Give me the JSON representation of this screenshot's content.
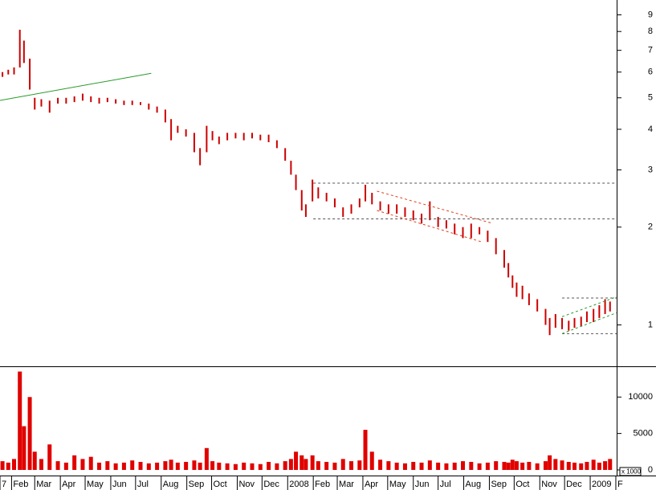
{
  "chart_data": [
    {
      "type": "range",
      "log": true,
      "color": "#cc0000",
      "xlim": [
        0,
        746
      ],
      "ylim": [
        0.75,
        10
      ],
      "yticks": [
        1,
        2,
        3,
        4,
        5,
        6,
        7,
        8,
        9
      ],
      "x": [
        3,
        10,
        17,
        24,
        29,
        36,
        42,
        50,
        60,
        70,
        80,
        90,
        100,
        110,
        120,
        130,
        140,
        150,
        160,
        170,
        180,
        190,
        200,
        207,
        215,
        225,
        235,
        242,
        250,
        257,
        265,
        275,
        285,
        295,
        305,
        315,
        325,
        335,
        345,
        352,
        358,
        365,
        370,
        378,
        385,
        395,
        405,
        415,
        425,
        435,
        442,
        450,
        460,
        470,
        480,
        490,
        500,
        510,
        520,
        530,
        540,
        550,
        560,
        570,
        580,
        590,
        600,
        610,
        615,
        620,
        625,
        632,
        640,
        650,
        660,
        665,
        672,
        680,
        688,
        695,
        703,
        710,
        718,
        725,
        732,
        738
      ],
      "low": [
        5.8,
        5.9,
        5.9,
        6.2,
        6.4,
        5.3,
        4.6,
        4.7,
        4.5,
        4.8,
        4.8,
        4.85,
        4.9,
        4.85,
        4.8,
        4.85,
        4.8,
        4.75,
        4.75,
        4.75,
        4.6,
        4.5,
        4.2,
        3.7,
        3.9,
        3.8,
        3.4,
        3.1,
        3.4,
        3.7,
        3.6,
        3.7,
        3.75,
        3.7,
        3.75,
        3.7,
        3.65,
        3.5,
        3.2,
        2.9,
        2.6,
        2.25,
        2.15,
        2.4,
        2.45,
        2.4,
        2.3,
        2.15,
        2.2,
        2.3,
        2.4,
        2.35,
        2.25,
        2.2,
        2.2,
        2.15,
        2.1,
        2.05,
        2.1,
        2.0,
        1.98,
        1.9,
        1.85,
        1.85,
        1.9,
        1.8,
        1.65,
        1.5,
        1.4,
        1.3,
        1.22,
        1.2,
        1.15,
        1.1,
        1.0,
        0.93,
        0.98,
        0.97,
        0.96,
        0.98,
        0.99,
        1.02,
        1.02,
        1.05,
        1.08,
        1.1
      ],
      "high": [
        6.0,
        6.1,
        6.2,
        8.1,
        7.5,
        6.6,
        5.0,
        4.95,
        4.9,
        5.0,
        5.0,
        5.05,
        5.15,
        5.05,
        5.0,
        5.0,
        4.95,
        4.9,
        4.9,
        4.85,
        4.8,
        4.7,
        4.6,
        4.3,
        4.1,
        4.0,
        3.9,
        3.5,
        4.1,
        3.95,
        3.8,
        3.9,
        3.9,
        3.9,
        3.9,
        3.85,
        3.85,
        3.7,
        3.5,
        3.2,
        2.9,
        2.6,
        2.35,
        2.8,
        2.65,
        2.55,
        2.45,
        2.3,
        2.35,
        2.45,
        2.7,
        2.55,
        2.4,
        2.35,
        2.35,
        2.3,
        2.25,
        2.2,
        2.4,
        2.15,
        2.1,
        2.05,
        2.0,
        2.05,
        2.0,
        1.95,
        1.85,
        1.7,
        1.55,
        1.42,
        1.35,
        1.32,
        1.25,
        1.2,
        1.12,
        1.05,
        1.08,
        1.05,
        1.03,
        1.05,
        1.06,
        1.1,
        1.12,
        1.15,
        1.2,
        1.18
      ],
      "lines": [
        {
          "x": [
            0,
            183
          ],
          "y": [
            4.91,
            5.95
          ],
          "color": "#2a9a2a",
          "dashed": false
        },
        {
          "x": [
            379,
            746
          ],
          "y": [
            2.73,
            2.73
          ],
          "color": "#555555",
          "dashed": true
        },
        {
          "x": [
            379,
            746
          ],
          "y": [
            2.12,
            2.12
          ],
          "color": "#555555",
          "dashed": true
        },
        {
          "x": [
            680,
            746
          ],
          "y": [
            1.21,
            1.21
          ],
          "color": "#555555",
          "dashed": true
        },
        {
          "x": [
            680,
            746
          ],
          "y": [
            0.94,
            0.94
          ],
          "color": "#555555",
          "dashed": true
        },
        {
          "x": [
            456,
            594
          ],
          "y": [
            2.58,
            2.06
          ],
          "color": "#e04020",
          "dashed": true
        },
        {
          "x": [
            456,
            583
          ],
          "y": [
            2.25,
            1.8
          ],
          "color": "#e04020",
          "dashed": true
        },
        {
          "x": [
            680,
            746
          ],
          "y": [
            1.06,
            1.22
          ],
          "color": "#2a9a2a",
          "dashed": true
        },
        {
          "x": [
            680,
            746
          ],
          "y": [
            0.94,
            1.09
          ],
          "color": "#2a9a2a",
          "dashed": true
        }
      ]
    },
    {
      "type": "bar",
      "color": "#e00000",
      "xlim": [
        0,
        746
      ],
      "ylim": [
        0,
        14000
      ],
      "yticks": [
        0,
        5000,
        10000
      ],
      "unit_label": "x 1000",
      "x": [
        3,
        10,
        17,
        24,
        29,
        36,
        42,
        50,
        60,
        70,
        80,
        90,
        100,
        110,
        120,
        130,
        140,
        150,
        160,
        170,
        180,
        190,
        200,
        207,
        215,
        225,
        235,
        242,
        250,
        257,
        265,
        275,
        285,
        295,
        305,
        315,
        325,
        335,
        345,
        352,
        358,
        365,
        370,
        378,
        385,
        395,
        405,
        415,
        425,
        435,
        442,
        450,
        460,
        470,
        480,
        490,
        500,
        510,
        520,
        530,
        540,
        550,
        560,
        570,
        580,
        590,
        600,
        610,
        615,
        620,
        625,
        632,
        640,
        650,
        660,
        665,
        672,
        680,
        688,
        695,
        703,
        710,
        718,
        725,
        732,
        738
      ],
      "values": [
        1200,
        1000,
        1500,
        13500,
        6000,
        10000,
        2500,
        1500,
        3500,
        1200,
        1000,
        2000,
        1500,
        1800,
        1000,
        1200,
        900,
        1000,
        1300,
        1100,
        900,
        1000,
        1200,
        1400,
        1000,
        1100,
        1300,
        1000,
        3000,
        1200,
        1000,
        900,
        800,
        1000,
        900,
        800,
        1100,
        900,
        1200,
        1500,
        2500,
        2000,
        1500,
        2000,
        1200,
        1100,
        1000,
        1500,
        1200,
        1300,
        5500,
        2500,
        1400,
        1200,
        1000,
        900,
        1100,
        1000,
        1300,
        1000,
        900,
        1000,
        1200,
        1100,
        900,
        1000,
        1200,
        1100,
        1000,
        1400,
        1200,
        1000,
        1100,
        900,
        1200,
        2000,
        1500,
        1300,
        1100,
        1000,
        900,
        1100,
        1400,
        1000,
        1200,
        1500
      ],
      "xticks": [
        {
          "value": 0,
          "label": "7"
        },
        {
          "value": 14,
          "label": "Feb"
        },
        {
          "value": 42,
          "label": "Mar"
        },
        {
          "value": 73,
          "label": "Apr"
        },
        {
          "value": 103,
          "label": "May"
        },
        {
          "value": 134,
          "label": "Jun"
        },
        {
          "value": 164,
          "label": "Jul"
        },
        {
          "value": 195,
          "label": "Aug"
        },
        {
          "value": 226,
          "label": "Sep"
        },
        {
          "value": 256,
          "label": "Oct"
        },
        {
          "value": 287,
          "label": "Nov"
        },
        {
          "value": 317,
          "label": "Dec"
        },
        {
          "value": 348,
          "label": "2008"
        },
        {
          "value": 379,
          "label": "Feb"
        },
        {
          "value": 408,
          "label": "Mar"
        },
        {
          "value": 439,
          "label": "Apr"
        },
        {
          "value": 469,
          "label": "May"
        },
        {
          "value": 500,
          "label": "Jun"
        },
        {
          "value": 530,
          "label": "Jul"
        },
        {
          "value": 561,
          "label": "Aug"
        },
        {
          "value": 592,
          "label": "Sep"
        },
        {
          "value": 622,
          "label": "Oct"
        },
        {
          "value": 653,
          "label": "Nov"
        },
        {
          "value": 683,
          "label": "Dec"
        },
        {
          "value": 714,
          "label": "2009"
        },
        {
          "value": 745,
          "label": "F"
        }
      ]
    }
  ]
}
